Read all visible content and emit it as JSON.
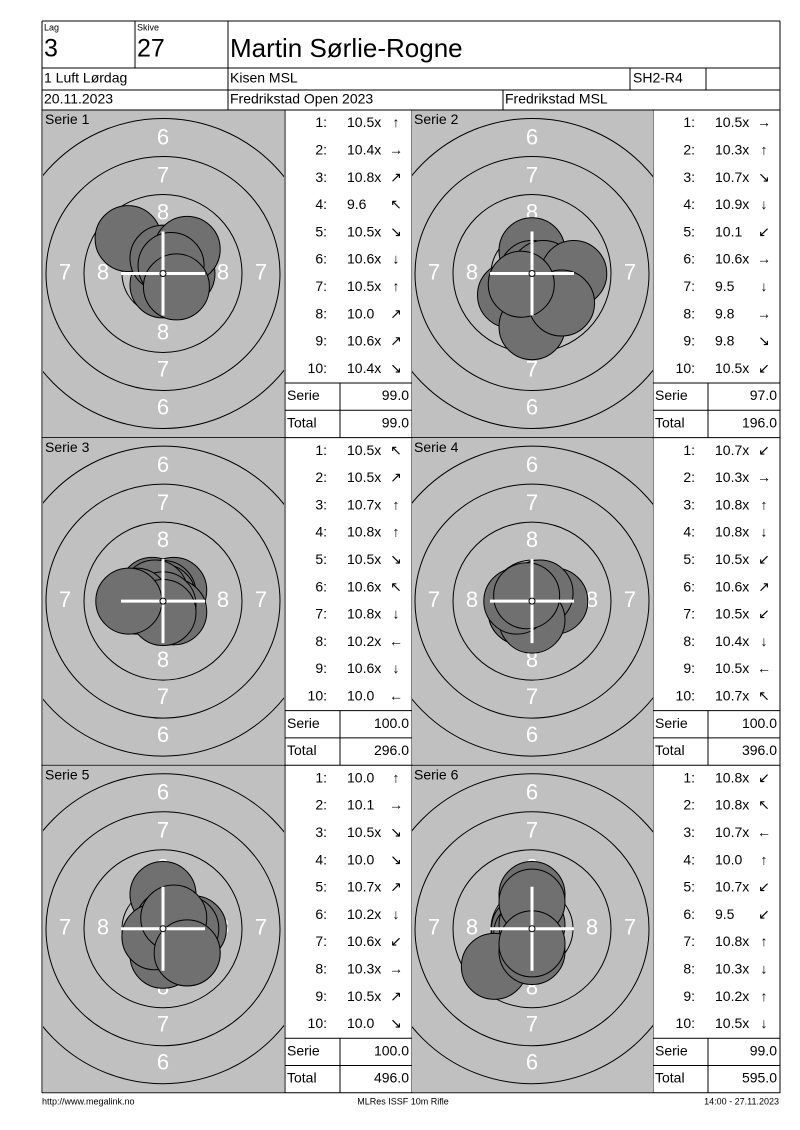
{
  "header": {
    "lag_label": "Lag",
    "lag": "3",
    "skive_label": "Skive",
    "skive": "27",
    "name": "Martin Sørlie-Rogne",
    "class": "1 Luft Lørdag",
    "club": "Kisen MSL",
    "code": "SH2-R4",
    "date": "20.11.2023",
    "competition": "Fredrikstad Open 2023",
    "organizer": "Fredrikstad MSL"
  },
  "ring_labels": [
    "6",
    "7",
    "8"
  ],
  "series": [
    {
      "title": "Serie 1",
      "shots": [
        {
          "n": "1:",
          "score": "10.5x",
          "dir": "↑"
        },
        {
          "n": "2:",
          "score": "10.4x",
          "dir": "→"
        },
        {
          "n": "3:",
          "score": "10.8x",
          "dir": "↗"
        },
        {
          "n": "4:",
          "score": "9.6",
          "dir": "↖"
        },
        {
          "n": "5:",
          "score": "10.5x",
          "dir": "↘"
        },
        {
          "n": "6:",
          "score": "10.6x",
          "dir": "↓"
        },
        {
          "n": "7:",
          "score": "10.5x",
          "dir": "↑"
        },
        {
          "n": "8:",
          "score": "10.0",
          "dir": "↗"
        },
        {
          "n": "9:",
          "score": "10.6x",
          "dir": "↗"
        },
        {
          "n": "10:",
          "score": "10.4x",
          "dir": "↘"
        }
      ],
      "serie_label": "Serie",
      "serie": "99.0",
      "total_label": "Total",
      "total": "99.0"
    },
    {
      "title": "Serie 2",
      "shots": [
        {
          "n": "1:",
          "score": "10.5x",
          "dir": "→"
        },
        {
          "n": "2:",
          "score": "10.3x",
          "dir": "↑"
        },
        {
          "n": "3:",
          "score": "10.7x",
          "dir": "↘"
        },
        {
          "n": "4:",
          "score": "10.9x",
          "dir": "↓"
        },
        {
          "n": "5:",
          "score": "10.1",
          "dir": "↙"
        },
        {
          "n": "6:",
          "score": "10.6x",
          "dir": "→"
        },
        {
          "n": "7:",
          "score": "9.5",
          "dir": "↓"
        },
        {
          "n": "8:",
          "score": "9.8",
          "dir": "→"
        },
        {
          "n": "9:",
          "score": "9.8",
          "dir": "↘"
        },
        {
          "n": "10:",
          "score": "10.5x",
          "dir": "↙"
        }
      ],
      "serie_label": "Serie",
      "serie": "97.0",
      "total_label": "Total",
      "total": "196.0"
    },
    {
      "title": "Serie 3",
      "shots": [
        {
          "n": "1:",
          "score": "10.5x",
          "dir": "↖"
        },
        {
          "n": "2:",
          "score": "10.5x",
          "dir": "↗"
        },
        {
          "n": "3:",
          "score": "10.7x",
          "dir": "↑"
        },
        {
          "n": "4:",
          "score": "10.8x",
          "dir": "↑"
        },
        {
          "n": "5:",
          "score": "10.5x",
          "dir": "↘"
        },
        {
          "n": "6:",
          "score": "10.6x",
          "dir": "↖"
        },
        {
          "n": "7:",
          "score": "10.8x",
          "dir": "↓"
        },
        {
          "n": "8:",
          "score": "10.2x",
          "dir": "←"
        },
        {
          "n": "9:",
          "score": "10.6x",
          "dir": "↓"
        },
        {
          "n": "10:",
          "score": "10.0",
          "dir": "←"
        }
      ],
      "serie_label": "Serie",
      "serie": "100.0",
      "total_label": "Total",
      "total": "296.0"
    },
    {
      "title": "Serie 4",
      "shots": [
        {
          "n": "1:",
          "score": "10.7x",
          "dir": "↙"
        },
        {
          "n": "2:",
          "score": "10.3x",
          "dir": "→"
        },
        {
          "n": "3:",
          "score": "10.8x",
          "dir": "↑"
        },
        {
          "n": "4:",
          "score": "10.8x",
          "dir": "↓"
        },
        {
          "n": "5:",
          "score": "10.5x",
          "dir": "↙"
        },
        {
          "n": "6:",
          "score": "10.6x",
          "dir": "↗"
        },
        {
          "n": "7:",
          "score": "10.5x",
          "dir": "↙"
        },
        {
          "n": "8:",
          "score": "10.4x",
          "dir": "↓"
        },
        {
          "n": "9:",
          "score": "10.5x",
          "dir": "←"
        },
        {
          "n": "10:",
          "score": "10.7x",
          "dir": "↖"
        }
      ],
      "serie_label": "Serie",
      "serie": "100.0",
      "total_label": "Total",
      "total": "396.0"
    },
    {
      "title": "Serie 5",
      "shots": [
        {
          "n": "1:",
          "score": "10.0",
          "dir": "↑"
        },
        {
          "n": "2:",
          "score": "10.1",
          "dir": "→"
        },
        {
          "n": "3:",
          "score": "10.5x",
          "dir": "↘"
        },
        {
          "n": "4:",
          "score": "10.0",
          "dir": "↘"
        },
        {
          "n": "5:",
          "score": "10.7x",
          "dir": "↗"
        },
        {
          "n": "6:",
          "score": "10.2x",
          "dir": "↓"
        },
        {
          "n": "7:",
          "score": "10.6x",
          "dir": "↙"
        },
        {
          "n": "8:",
          "score": "10.3x",
          "dir": "→"
        },
        {
          "n": "9:",
          "score": "10.5x",
          "dir": "↗"
        },
        {
          "n": "10:",
          "score": "10.0",
          "dir": "↘"
        }
      ],
      "serie_label": "Serie",
      "serie": "100.0",
      "total_label": "Total",
      "total": "496.0"
    },
    {
      "title": "Serie 6",
      "shots": [
        {
          "n": "1:",
          "score": "10.8x",
          "dir": "↙"
        },
        {
          "n": "2:",
          "score": "10.8x",
          "dir": "↖"
        },
        {
          "n": "3:",
          "score": "10.7x",
          "dir": "←"
        },
        {
          "n": "4:",
          "score": "10.0",
          "dir": "↑"
        },
        {
          "n": "5:",
          "score": "10.7x",
          "dir": "↙"
        },
        {
          "n": "6:",
          "score": "9.5",
          "dir": "↙"
        },
        {
          "n": "7:",
          "score": "10.8x",
          "dir": "↑"
        },
        {
          "n": "8:",
          "score": "10.3x",
          "dir": "↓"
        },
        {
          "n": "9:",
          "score": "10.2x",
          "dir": "↑"
        },
        {
          "n": "10:",
          "score": "10.5x",
          "dir": "↓"
        }
      ],
      "serie_label": "Serie",
      "serie": "99.0",
      "total_label": "Total",
      "total": "595.0"
    }
  ],
  "footer": {
    "url": "http://www.megalink.no",
    "program": "MLRes ISSF 10m Rifle",
    "timestamp": "14:00 - 27.11.2023"
  }
}
